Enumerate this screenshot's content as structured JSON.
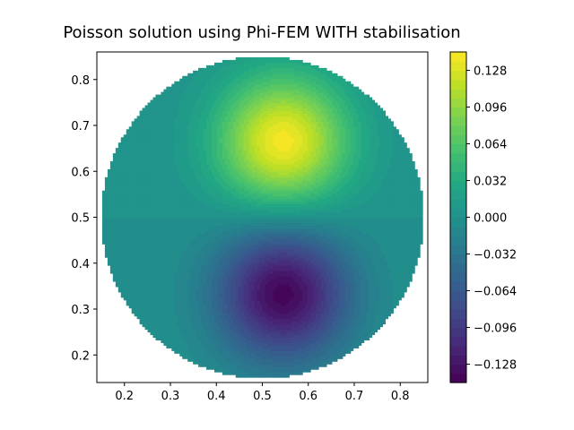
{
  "chart_data": {
    "type": "heatmap",
    "title": "Poisson solution using Phi-FEM WITH stabilisation",
    "xlabel": "",
    "ylabel": "",
    "xlim": [
      0.14,
      0.86
    ],
    "ylim": [
      0.14,
      0.86
    ],
    "x_ticks": [
      "0.2",
      "0.3",
      "0.4",
      "0.5",
      "0.6",
      "0.7",
      "0.8"
    ],
    "y_ticks": [
      "0.2",
      "0.3",
      "0.4",
      "0.5",
      "0.6",
      "0.7",
      "0.8"
    ],
    "domain": {
      "shape": "disk",
      "center": [
        0.5,
        0.5
      ],
      "radius": 0.35
    },
    "field": {
      "description_formula": "amplitude * exp(-r^2/w^2) peaks",
      "max": {
        "at": [
          0.545,
          0.666
        ],
        "value": 0.14
      },
      "min": {
        "at": [
          0.545,
          0.334
        ],
        "value": -0.14
      }
    },
    "colorbar": {
      "colormap": "viridis",
      "vmin": -0.144,
      "vmax": 0.144,
      "ticks": [
        "−0.128",
        "−0.096",
        "−0.064",
        "−0.032",
        "0.000",
        "0.032",
        "0.064",
        "0.096",
        "0.128"
      ],
      "tick_values": [
        -0.128,
        -0.096,
        -0.064,
        -0.032,
        0.0,
        0.032,
        0.064,
        0.096,
        0.128
      ]
    },
    "grid": false
  },
  "colors": {
    "viridis_low": "#440154",
    "viridis_mid": "#21918c",
    "viridis_high": "#fde725"
  }
}
